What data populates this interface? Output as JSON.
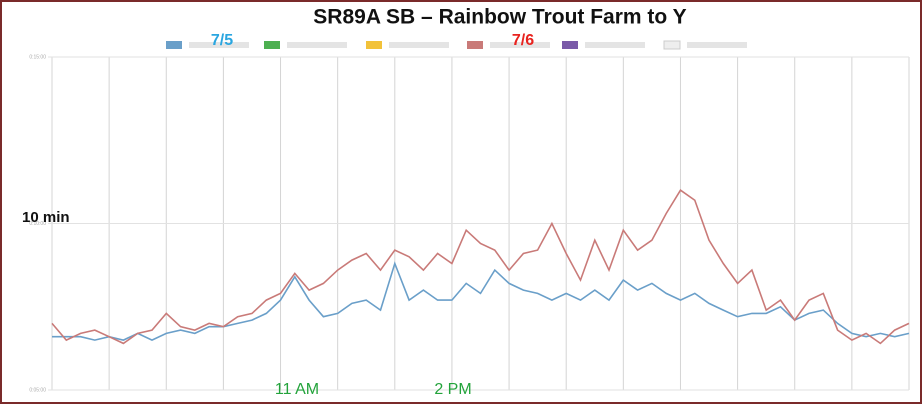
{
  "chart_data": {
    "type": "line",
    "title": "SR89A SB – Rainbow Trout Farm to Y",
    "annotations": [
      "10 min",
      "11 AM",
      "2 PM"
    ],
    "ylim": [
      5,
      15
    ],
    "yticks": [
      {
        "value": 5,
        "label": "0:05:00"
      },
      {
        "value": 10,
        "label": "0:10:00"
      },
      {
        "value": 15,
        "label": "0:15:00"
      }
    ],
    "grid": true,
    "series": [
      {
        "name": "7/5",
        "color": "#6a9fc9",
        "label_color": "#2aa6e0",
        "values": [
          6.6,
          6.6,
          6.6,
          6.5,
          6.6,
          6.5,
          6.7,
          6.5,
          6.7,
          6.8,
          6.7,
          6.9,
          6.9,
          7.0,
          7.1,
          7.3,
          7.7,
          8.4,
          7.7,
          7.2,
          7.3,
          7.6,
          7.7,
          7.4,
          8.8,
          7.7,
          8.0,
          7.7,
          7.7,
          8.2,
          7.9,
          8.6,
          8.2,
          8.0,
          7.9,
          7.7,
          7.9,
          7.7,
          8.0,
          7.7,
          8.3,
          8.0,
          8.2,
          7.9,
          7.7,
          7.9,
          7.6,
          7.4,
          7.2,
          7.3,
          7.3,
          7.5,
          7.1,
          7.3,
          7.4,
          7.0,
          6.7,
          6.6,
          6.7,
          6.6,
          6.7
        ]
      },
      {
        "name": "7/6",
        "color": "#c97a78",
        "label_color": "#e8231f",
        "values": [
          7.0,
          6.5,
          6.7,
          6.8,
          6.6,
          6.4,
          6.7,
          6.8,
          7.3,
          6.9,
          6.8,
          7.0,
          6.9,
          7.2,
          7.3,
          7.7,
          7.9,
          8.5,
          8.0,
          8.2,
          8.6,
          8.9,
          9.1,
          8.6,
          9.2,
          9.0,
          8.6,
          9.1,
          8.8,
          9.8,
          9.4,
          9.2,
          8.6,
          9.1,
          9.2,
          10.0,
          9.1,
          8.3,
          9.5,
          8.6,
          9.8,
          9.2,
          9.5,
          10.3,
          11.0,
          10.7,
          9.5,
          8.8,
          8.2,
          8.6,
          7.4,
          7.7,
          7.1,
          7.7,
          7.9,
          6.8,
          6.5,
          6.7,
          6.4,
          6.8,
          7.0
        ]
      }
    ]
  }
}
